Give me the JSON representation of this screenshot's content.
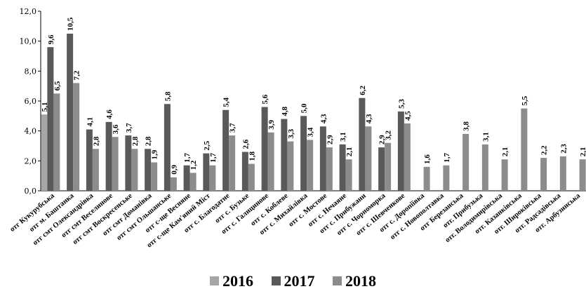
{
  "chart_data": {
    "type": "bar",
    "ylim": [
      0,
      12
    ],
    "yticks": [
      "0,0",
      "2,0",
      "4,0",
      "6,0",
      "8,0",
      "10,0",
      "12,0"
    ],
    "grid": false,
    "legend_position": "bottom",
    "categories": [
      "отг Кукурубська",
      "отг м. Баштанка",
      "отг смт Олександрівка",
      "отг смт Веселинове",
      "отг смт Воскресенське",
      "отг смт Доманівка",
      "отг смт Ольшанське",
      "отг с-ще Весняне",
      "отг с-ще Кам'яний Міст",
      "отг с. Благодатне",
      "отг с. Бузьке",
      "отг с. Галицинове",
      "отг с. Коблеве",
      "отг с. Михайлівка",
      "отг с. Мостове",
      "отг с. Нечаяне",
      "отг с. Прибужани",
      "отг с. Чорноморка",
      "отг с. Шевченкове",
      "отг с. Доропіївка",
      "отг с. Новополтавка",
      "отг Березанська",
      "отг. Прибузька",
      "отг. Володимирівська",
      "отг. Казанківська",
      "отг. Широківська",
      "отг. Радсадівська",
      "отг. Арбузинська"
    ],
    "series": [
      {
        "name": "2016",
        "color": "#a6a6a6",
        "values": [
          5.1,
          null,
          null,
          null,
          null,
          null,
          null,
          null,
          null,
          null,
          null,
          null,
          null,
          null,
          null,
          null,
          null,
          null,
          null,
          null,
          null,
          null,
          null,
          null,
          null,
          null,
          null,
          null
        ],
        "labels": [
          "5,1",
          "",
          "",
          "",
          "",
          "",
          "",
          "",
          "",
          "",
          "",
          "",
          "",
          "",
          "",
          "",
          "",
          "",
          "",
          "",
          "",
          "",
          "",
          "",
          "",
          "",
          "",
          ""
        ]
      },
      {
        "name": "2017",
        "color": "#595959",
        "values": [
          9.6,
          10.5,
          4.1,
          4.6,
          3.7,
          2.8,
          5.8,
          1.7,
          2.5,
          5.4,
          2.6,
          5.6,
          4.8,
          5.0,
          4.3,
          3.1,
          6.2,
          2.9,
          5.3,
          null,
          null,
          null,
          null,
          null,
          null,
          null,
          null,
          null
        ],
        "labels": [
          "9,6",
          "10,5",
          "4,1",
          "4,6",
          "3,7",
          "2,8",
          "5,8",
          "1,7",
          "2,5",
          "5,4",
          "2,6",
          "5,6",
          "4,8",
          "5,0",
          "4,3",
          "3,1",
          "6,2",
          "2,9",
          "5,3",
          "",
          "",
          "",
          "",
          "",
          "",
          "",
          "",
          ""
        ]
      },
      {
        "name": "2018",
        "color": "#8c8c8c",
        "values": [
          6.5,
          7.2,
          2.8,
          3.6,
          2.8,
          1.9,
          0.9,
          1.2,
          1.7,
          3.7,
          1.8,
          3.9,
          3.3,
          3.4,
          2.9,
          2.1,
          4.3,
          3.2,
          4.5,
          1.6,
          1.7,
          3.8,
          3.1,
          2.1,
          5.5,
          2.2,
          2.3,
          2.1
        ],
        "labels": [
          "6,5",
          "7,2",
          "2,8",
          "3,6",
          "2,8",
          "1,9",
          "0,9",
          "1,2",
          "1,7",
          "3,7",
          "1,8",
          "3,9",
          "3,3",
          "3,4",
          "2,9",
          "2,1",
          "4,3",
          "3,2",
          "4,5",
          "1,6",
          "1,7",
          "3,8",
          "3,1",
          "2,1",
          "5,5",
          "2,2",
          "2,3",
          "2,1"
        ]
      }
    ]
  }
}
